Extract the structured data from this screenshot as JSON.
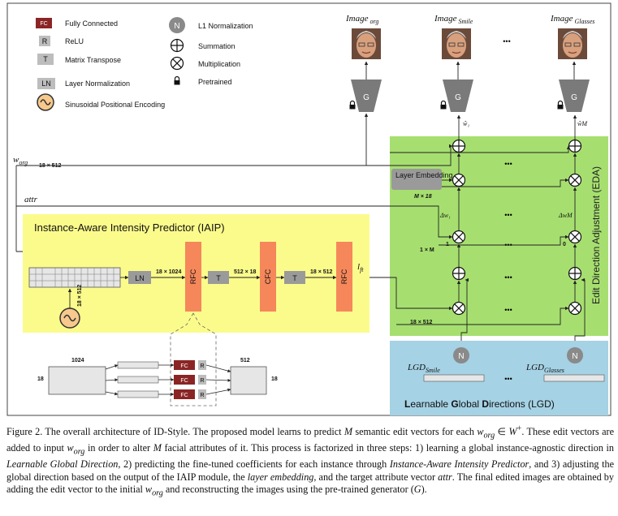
{
  "legend": {
    "fc_code": "FC",
    "fc": "Fully Connected",
    "r_code": "R",
    "relu": "ReLU",
    "t_code": "T",
    "transpose": "Matrix Transpose",
    "ln_code": "LN",
    "layernorm": "Layer Normalization",
    "sin": "Sinusoidal Positional Encoding",
    "n_code": "N",
    "l1": "L1 Normalization",
    "sum": "Summation",
    "mult": "Multiplication",
    "pretrained": "Pretrained"
  },
  "images": {
    "img_word": "Image",
    "org_sub": "org",
    "smile_sub": "Smile",
    "glasses_sub": "Glasses",
    "dots": "•••"
  },
  "generator": {
    "label": "G",
    "w1": "ŵ₁",
    "wM": "ŵM"
  },
  "inputs": {
    "w_org": "w",
    "w_org_sub": "org",
    "w_dim": "18 × 512",
    "attr": "attr"
  },
  "iaip": {
    "title": "Instance-Aware Intensity Predictor (IAIP)",
    "ln": "LN",
    "t": "T",
    "rfc": "RFC",
    "cfc": "CFC",
    "d1": "18 × 1024",
    "d2": "512 × 18",
    "d3": "18 × 512",
    "pos_dim": "18 × 512",
    "lft": "l",
    "lft_sub": "ft",
    "detail_1024": "1024",
    "detail_512": "512",
    "detail_18a": "18",
    "detail_18b": "18",
    "detail_fc": "FC",
    "detail_r": "R"
  },
  "eda": {
    "title": "Edit Direction Adjustment (EDA)",
    "layer_emb": "Layer Embedding",
    "m18": "M × 18",
    "dw1": "Δw₁",
    "dwM": "ΔwM",
    "one": "1",
    "zero": "0",
    "onexm": "1 × M",
    "d512": "18 × 512"
  },
  "lgd": {
    "title_L": "L",
    "title_1": "earnable ",
    "title_G": "G",
    "title_2": "lobal ",
    "title_D": "D",
    "title_3": "irections (LGD)",
    "smile": "LGD",
    "smile_sub": "Smile",
    "glasses": "LGD",
    "glasses_sub": "Glasses",
    "n": "N"
  },
  "caption": {
    "p1": "Figure 2. The overall architecture of ID-Style. The proposed model learns to predict ",
    "M1": "M",
    "p2": " semantic edit vectors for each ",
    "w1": "w",
    "w1sub": "org",
    "p3": " ∈ ",
    "Wplus": "W",
    "p4": ". These edit vectors are added to input ",
    "w2": "w",
    "w2sub": "org",
    "p5": " in order to alter ",
    "M2": "M",
    "p6": " facial attributes of it. This process is factorized in three steps: 1) learning a global instance-agnostic direction in ",
    "i1": "Learnable Global Direction",
    "p7": ", 2) predicting the fine-tuned coefficients for each instance through ",
    "i2": "Instance-Aware Intensity Predictor",
    "p8": ", and 3) adjusting the global direction based on the output of the IAIP module, the ",
    "i3": "layer embedding",
    "p9": ", and the target attribute vector ",
    "attr": "attr",
    "p10": ". The final edited images are obtained by adding the edit vector to the initial ",
    "w3": "w",
    "w3sub": "org",
    "p11": " and reconstructing the images using the pre-trained generator (",
    "G": "G",
    "p12": ")."
  }
}
